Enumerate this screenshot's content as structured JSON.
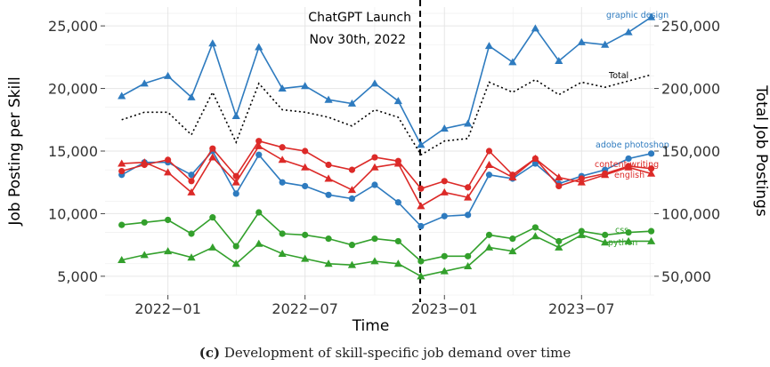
{
  "chart_data": {
    "type": "line",
    "xlabel": "Time",
    "ylabel_left": "Job Posting per Skill",
    "ylabel_right": "Total Job Postings",
    "ylim_left": [
      3500,
      26500
    ],
    "ylim_right": [
      35000,
      265000
    ],
    "xlim": [
      "2021-10-10",
      "2023-10-05"
    ],
    "x_ticks": [
      {
        "date": "2022-01-01",
        "label": "2022−01"
      },
      {
        "date": "2022-07-01",
        "label": "2022−07"
      },
      {
        "date": "2023-01-01",
        "label": "2023−01"
      },
      {
        "date": "2023-07-01",
        "label": "2023−07"
      }
    ],
    "y_ticks_left": [
      {
        "value": 5000,
        "label": "5,000"
      },
      {
        "value": 10000,
        "label": "10,000"
      },
      {
        "value": 15000,
        "label": "15,000"
      },
      {
        "value": 20000,
        "label": "20,000"
      },
      {
        "value": 25000,
        "label": "25,000"
      }
    ],
    "y_ticks_right": [
      {
        "value": 50000,
        "label": "50,000"
      },
      {
        "value": 100000,
        "label": "100,000"
      },
      {
        "value": 150000,
        "label": "150,000"
      },
      {
        "value": 200000,
        "label": "200,000"
      },
      {
        "value": 250000,
        "label": "250,000"
      }
    ],
    "x": [
      "2021-11-01",
      "2021-12-01",
      "2022-01-01",
      "2022-02-01",
      "2022-03-01",
      "2022-04-01",
      "2022-05-01",
      "2022-06-01",
      "2022-07-01",
      "2022-08-01",
      "2022-09-01",
      "2022-10-01",
      "2022-11-01",
      "2022-12-01",
      "2023-01-01",
      "2023-02-01",
      "2023-03-01",
      "2023-04-01",
      "2023-05-01",
      "2023-06-01",
      "2023-07-01",
      "2023-08-01",
      "2023-09-01",
      "2023-10-01"
    ],
    "series": [
      {
        "name": "graphic design",
        "axis": "left",
        "color": "#2e7bbf",
        "marker": "triangle",
        "style": "solid",
        "values": [
          19400,
          20400,
          21000,
          19300,
          23600,
          17800,
          23300,
          20000,
          20200,
          19100,
          18800,
          20400,
          19000,
          15500,
          16800,
          17200,
          23400,
          22100,
          24800,
          22200,
          23700,
          23500,
          24500,
          25700
        ]
      },
      {
        "name": "Total",
        "axis": "right",
        "color": "#000000",
        "marker": "none",
        "style": "dotted",
        "values": [
          175000,
          181000,
          181000,
          163000,
          197000,
          157000,
          204000,
          183000,
          181000,
          177000,
          170000,
          183000,
          177000,
          147000,
          158000,
          160000,
          205000,
          197000,
          207000,
          195000,
          205000,
          201000,
          206000,
          211000
        ]
      },
      {
        "name": "adobe photoshop",
        "axis": "left",
        "color": "#2e7bbf",
        "marker": "circle",
        "style": "solid",
        "values": [
          13100,
          14100,
          14100,
          13100,
          15000,
          11600,
          14700,
          12500,
          12200,
          11500,
          11200,
          12300,
          10900,
          9000,
          9800,
          9900,
          13100,
          12800,
          14000,
          12400,
          13000,
          13500,
          14400,
          14800
        ]
      },
      {
        "name": "content writing",
        "axis": "left",
        "color": "#dc2a28",
        "marker": "circle",
        "style": "solid",
        "values": [
          13400,
          13900,
          14300,
          12600,
          15200,
          13000,
          15800,
          15300,
          15000,
          13900,
          13500,
          14500,
          14200,
          12000,
          12600,
          12100,
          15000,
          13100,
          14400,
          12200,
          12800,
          13200,
          13800,
          13600
        ]
      },
      {
        "name": "english",
        "axis": "left",
        "color": "#dc2a28",
        "marker": "triangle",
        "style": "solid",
        "values": [
          14000,
          14100,
          13300,
          11700,
          14500,
          12500,
          15400,
          14300,
          13700,
          12800,
          11900,
          13700,
          14000,
          10600,
          11700,
          11300,
          13900,
          12900,
          14400,
          12900,
          12500,
          13100,
          13700,
          13200
        ]
      },
      {
        "name": "css",
        "axis": "left",
        "color": "#33a02c",
        "marker": "circle",
        "style": "solid",
        "values": [
          9100,
          9300,
          9500,
          8400,
          9700,
          7400,
          10100,
          8400,
          8300,
          8000,
          7500,
          8000,
          7800,
          6200,
          6600,
          6600,
          8300,
          8000,
          8900,
          7800,
          8600,
          8300,
          8500,
          8600
        ]
      },
      {
        "name": "python",
        "axis": "left",
        "color": "#33a02c",
        "marker": "triangle",
        "style": "solid",
        "values": [
          6300,
          6700,
          7000,
          6500,
          7300,
          6000,
          7600,
          6800,
          6400,
          6000,
          5900,
          6200,
          6000,
          5000,
          5400,
          5800,
          7300,
          7000,
          8200,
          7300,
          8300,
          7700,
          7800,
          7800
        ]
      }
    ],
    "vline": {
      "date": "2022-11-30",
      "label_line1": "ChatGPT Launch",
      "label_line2": "Nov 30th, 2022"
    },
    "grid": true
  },
  "caption_prefix": "(c)",
  "caption_text": "Development of skill-specific job demand over time"
}
